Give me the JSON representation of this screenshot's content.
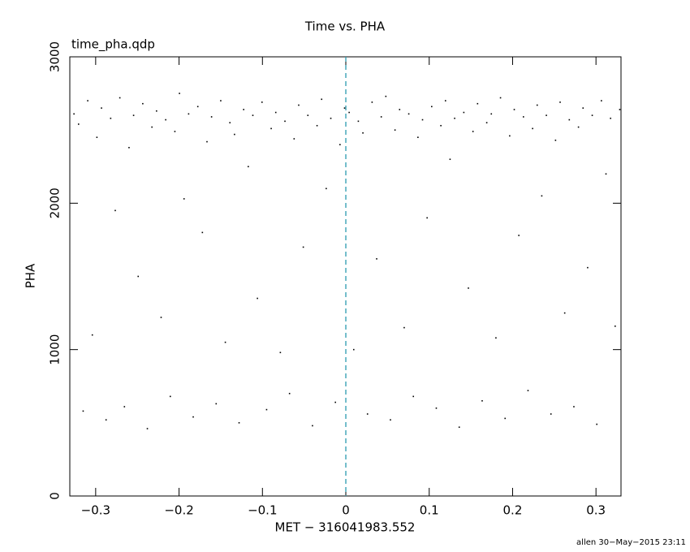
{
  "chart_data": {
    "type": "scatter",
    "title": "Time vs. PHA",
    "subtitle": "time_pha.qdp",
    "x_label": "MET − 316041983.552",
    "y_label": "PHA",
    "footer": "allen 30−May−2015 23:11",
    "x": [
      -0.326,
      -0.3205,
      -0.315,
      -0.3095,
      -0.304,
      -0.2985,
      -0.293,
      -0.2875,
      -0.282,
      -0.2765,
      -0.271,
      -0.2655,
      -0.26,
      -0.2545,
      -0.249,
      -0.2435,
      -0.238,
      -0.2325,
      -0.227,
      -0.2215,
      -0.216,
      -0.2105,
      -0.205,
      -0.1995,
      -0.194,
      -0.1885,
      -0.183,
      -0.1775,
      -0.172,
      -0.1665,
      -0.161,
      -0.1555,
      -0.15,
      -0.1445,
      -0.139,
      -0.1335,
      -0.128,
      -0.1225,
      -0.117,
      -0.1115,
      -0.106,
      -0.1005,
      -0.095,
      -0.0895,
      -0.084,
      -0.0785,
      -0.073,
      -0.0675,
      -0.062,
      -0.0565,
      -0.051,
      -0.0455,
      -0.04,
      -0.0345,
      -0.029,
      -0.0235,
      -0.018,
      -0.0125,
      -0.007,
      -0.0015,
      0.004,
      0.0095,
      0.015,
      0.0205,
      0.026,
      0.0315,
      0.037,
      0.0425,
      0.048,
      0.0535,
      0.059,
      0.0645,
      0.07,
      0.0755,
      0.081,
      0.0865,
      0.092,
      0.0975,
      0.103,
      0.1085,
      0.114,
      0.1195,
      0.125,
      0.1305,
      0.136,
      0.1415,
      0.147,
      0.1525,
      0.158,
      0.1635,
      0.169,
      0.1745,
      0.18,
      0.1855,
      0.191,
      0.1965,
      0.202,
      0.2075,
      0.213,
      0.2185,
      0.224,
      0.2295,
      0.235,
      0.2405,
      0.246,
      0.2515,
      0.257,
      0.2625,
      0.268,
      0.2735,
      0.279,
      0.2845,
      0.29,
      0.2955,
      0.301,
      0.3065,
      0.312,
      0.3175,
      0.323,
      0.3285
    ],
    "series": [
      {
        "color": "#000000",
        "values": [
          2610,
          2540,
          580,
          2700,
          1100,
          2450,
          2650,
          520,
          2580,
          1950,
          2720,
          610,
          2380,
          2600,
          1500,
          2680,
          460,
          2520,
          2630,
          1220,
          2570,
          680,
          2490,
          2750,
          2030,
          2610,
          540,
          2660,
          1800,
          2420,
          2590,
          630,
          2700,
          1050,
          2550,
          2470,
          500,
          2640,
          2250,
          2600,
          1350,
          2690,
          590,
          2510,
          2620,
          980,
          2560,
          700,
          2440,
          2670,
          1700,
          2600,
          480,
          2530,
          2710,
          2100,
          2580,
          640,
          2400,
          2650,
          2620,
          1000,
          2560,
          2480,
          560,
          2690,
          1620,
          2590,
          2730,
          520,
          2500,
          2640,
          1150,
          2610,
          680,
          2450,
          2570,
          1900,
          2660,
          600,
          2530,
          2700,
          2300,
          2580,
          470,
          2620,
          1420,
          2490,
          2680,
          650,
          2550,
          2610,
          1080,
          2720,
          530,
          2460,
          2640,
          1780,
          2590,
          720,
          2510,
          2670,
          2050,
          2600,
          560,
          2430,
          2690,
          1250,
          2570,
          610,
          2520,
          2650,
          1560,
          2600,
          490,
          2700,
          2200,
          2580,
          1160,
          2640
        ]
      }
    ],
    "xlim": [
      -0.331,
      0.33
    ],
    "ylim": [
      0,
      3000
    ],
    "xticks": [
      {
        "value": -0.3,
        "label": "−0.3"
      },
      {
        "value": -0.2,
        "label": "−0.2"
      },
      {
        "value": -0.1,
        "label": "−0.1"
      },
      0,
      0.1,
      0.2,
      0.3
    ],
    "yticks": [
      0,
      1000,
      2000,
      3000
    ],
    "vline": {
      "x": 0,
      "color": "#2a9bb0"
    }
  }
}
